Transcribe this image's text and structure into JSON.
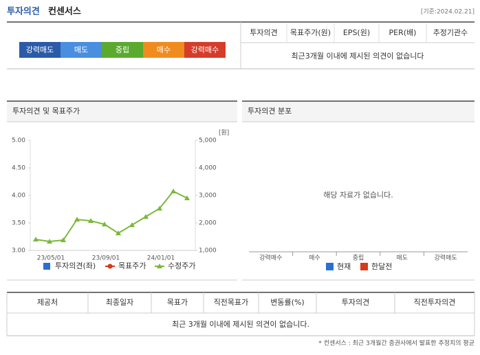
{
  "header": {
    "title": "투자의견",
    "subtitle": "컨센서스",
    "date": "[기준:2024.02.21]"
  },
  "rating_scale": {
    "labels": [
      "강력매도",
      "매도",
      "중립",
      "매수",
      "강력매수"
    ],
    "colors": [
      "#2b5aa8",
      "#4a8ee0",
      "#5aaa2e",
      "#f08c1e",
      "#d63c2a"
    ]
  },
  "consensus_table": {
    "headers": [
      "투자의견",
      "목표주가(원)",
      "EPS(원)",
      "PER(배)",
      "추정기관수"
    ],
    "empty_message": "최근3개월 이내에 제시된 의견이 없습니다"
  },
  "chart_data": [
    {
      "type": "line",
      "title": "투자의견 및 목표주가",
      "categories": [
        null,
        "23/05/01",
        null,
        null,
        null,
        "23/09/01",
        null,
        null,
        null,
        "24/01/01",
        null,
        null
      ],
      "ylim": [
        3,
        5
      ],
      "yticks": [
        {
          "value": 3,
          "label": "3.00"
        },
        {
          "value": 3.5,
          "label": "3.50"
        },
        {
          "value": 4,
          "label": "4.00"
        },
        {
          "value": 4.5,
          "label": "4.50"
        },
        {
          "value": 5,
          "label": "5.00"
        }
      ],
      "y2lim": [
        1000,
        5000
      ],
      "y2ticks": [
        {
          "value": 1000,
          "label": "1,000"
        },
        {
          "value": 2000,
          "label": "2,000"
        },
        {
          "value": 3000,
          "label": "3,000"
        },
        {
          "value": 4000,
          "label": "4,000"
        },
        {
          "value": 5000,
          "label": "5,000"
        }
      ],
      "y2_unit": "[원]",
      "series": [
        {
          "name": "투자의견(좌)",
          "color": "#2a6fd6",
          "marker": "square",
          "values": [
            null,
            null,
            null,
            null,
            null,
            null,
            null,
            null,
            null,
            null,
            null,
            null
          ]
        },
        {
          "name": "목표주가",
          "color": "#d63a1a",
          "marker": "circle",
          "axis": "y2",
          "values": [
            null,
            null,
            null,
            null,
            null,
            null,
            null,
            null,
            null,
            null,
            null,
            null
          ]
        },
        {
          "name": "수정주가",
          "color": "#7ab83a",
          "marker": "triangle",
          "axis": "y2",
          "values": [
            1400,
            1325,
            1375,
            2125,
            2075,
            1950,
            1625,
            1925,
            2225,
            2525,
            3150,
            2900
          ]
        }
      ]
    },
    {
      "type": "bar",
      "title": "투자의견 분포",
      "no_data_message": "해당 자료가 없습니다.",
      "categories": [
        "강력매수",
        "매수",
        "중립",
        "매도",
        "강력매도"
      ],
      "series": [
        {
          "name": "현재",
          "color": "#2a6fd6",
          "values": [
            null,
            null,
            null,
            null,
            null
          ]
        },
        {
          "name": "한달전",
          "color": "#d63a1a",
          "values": [
            null,
            null,
            null,
            null,
            null
          ]
        }
      ]
    }
  ],
  "provider_table": {
    "headers": [
      "제공처",
      "최종일자",
      "목표가",
      "직전목표가",
      "변동률(%)",
      "투자의견",
      "직전투자의견"
    ],
    "empty_message": "최근 3개월 이내에 제시된 의견이 없습니다."
  },
  "footnote": "* 컨센서스 : 최근 3개월간 증권사에서 발표한 추정치의 평균"
}
